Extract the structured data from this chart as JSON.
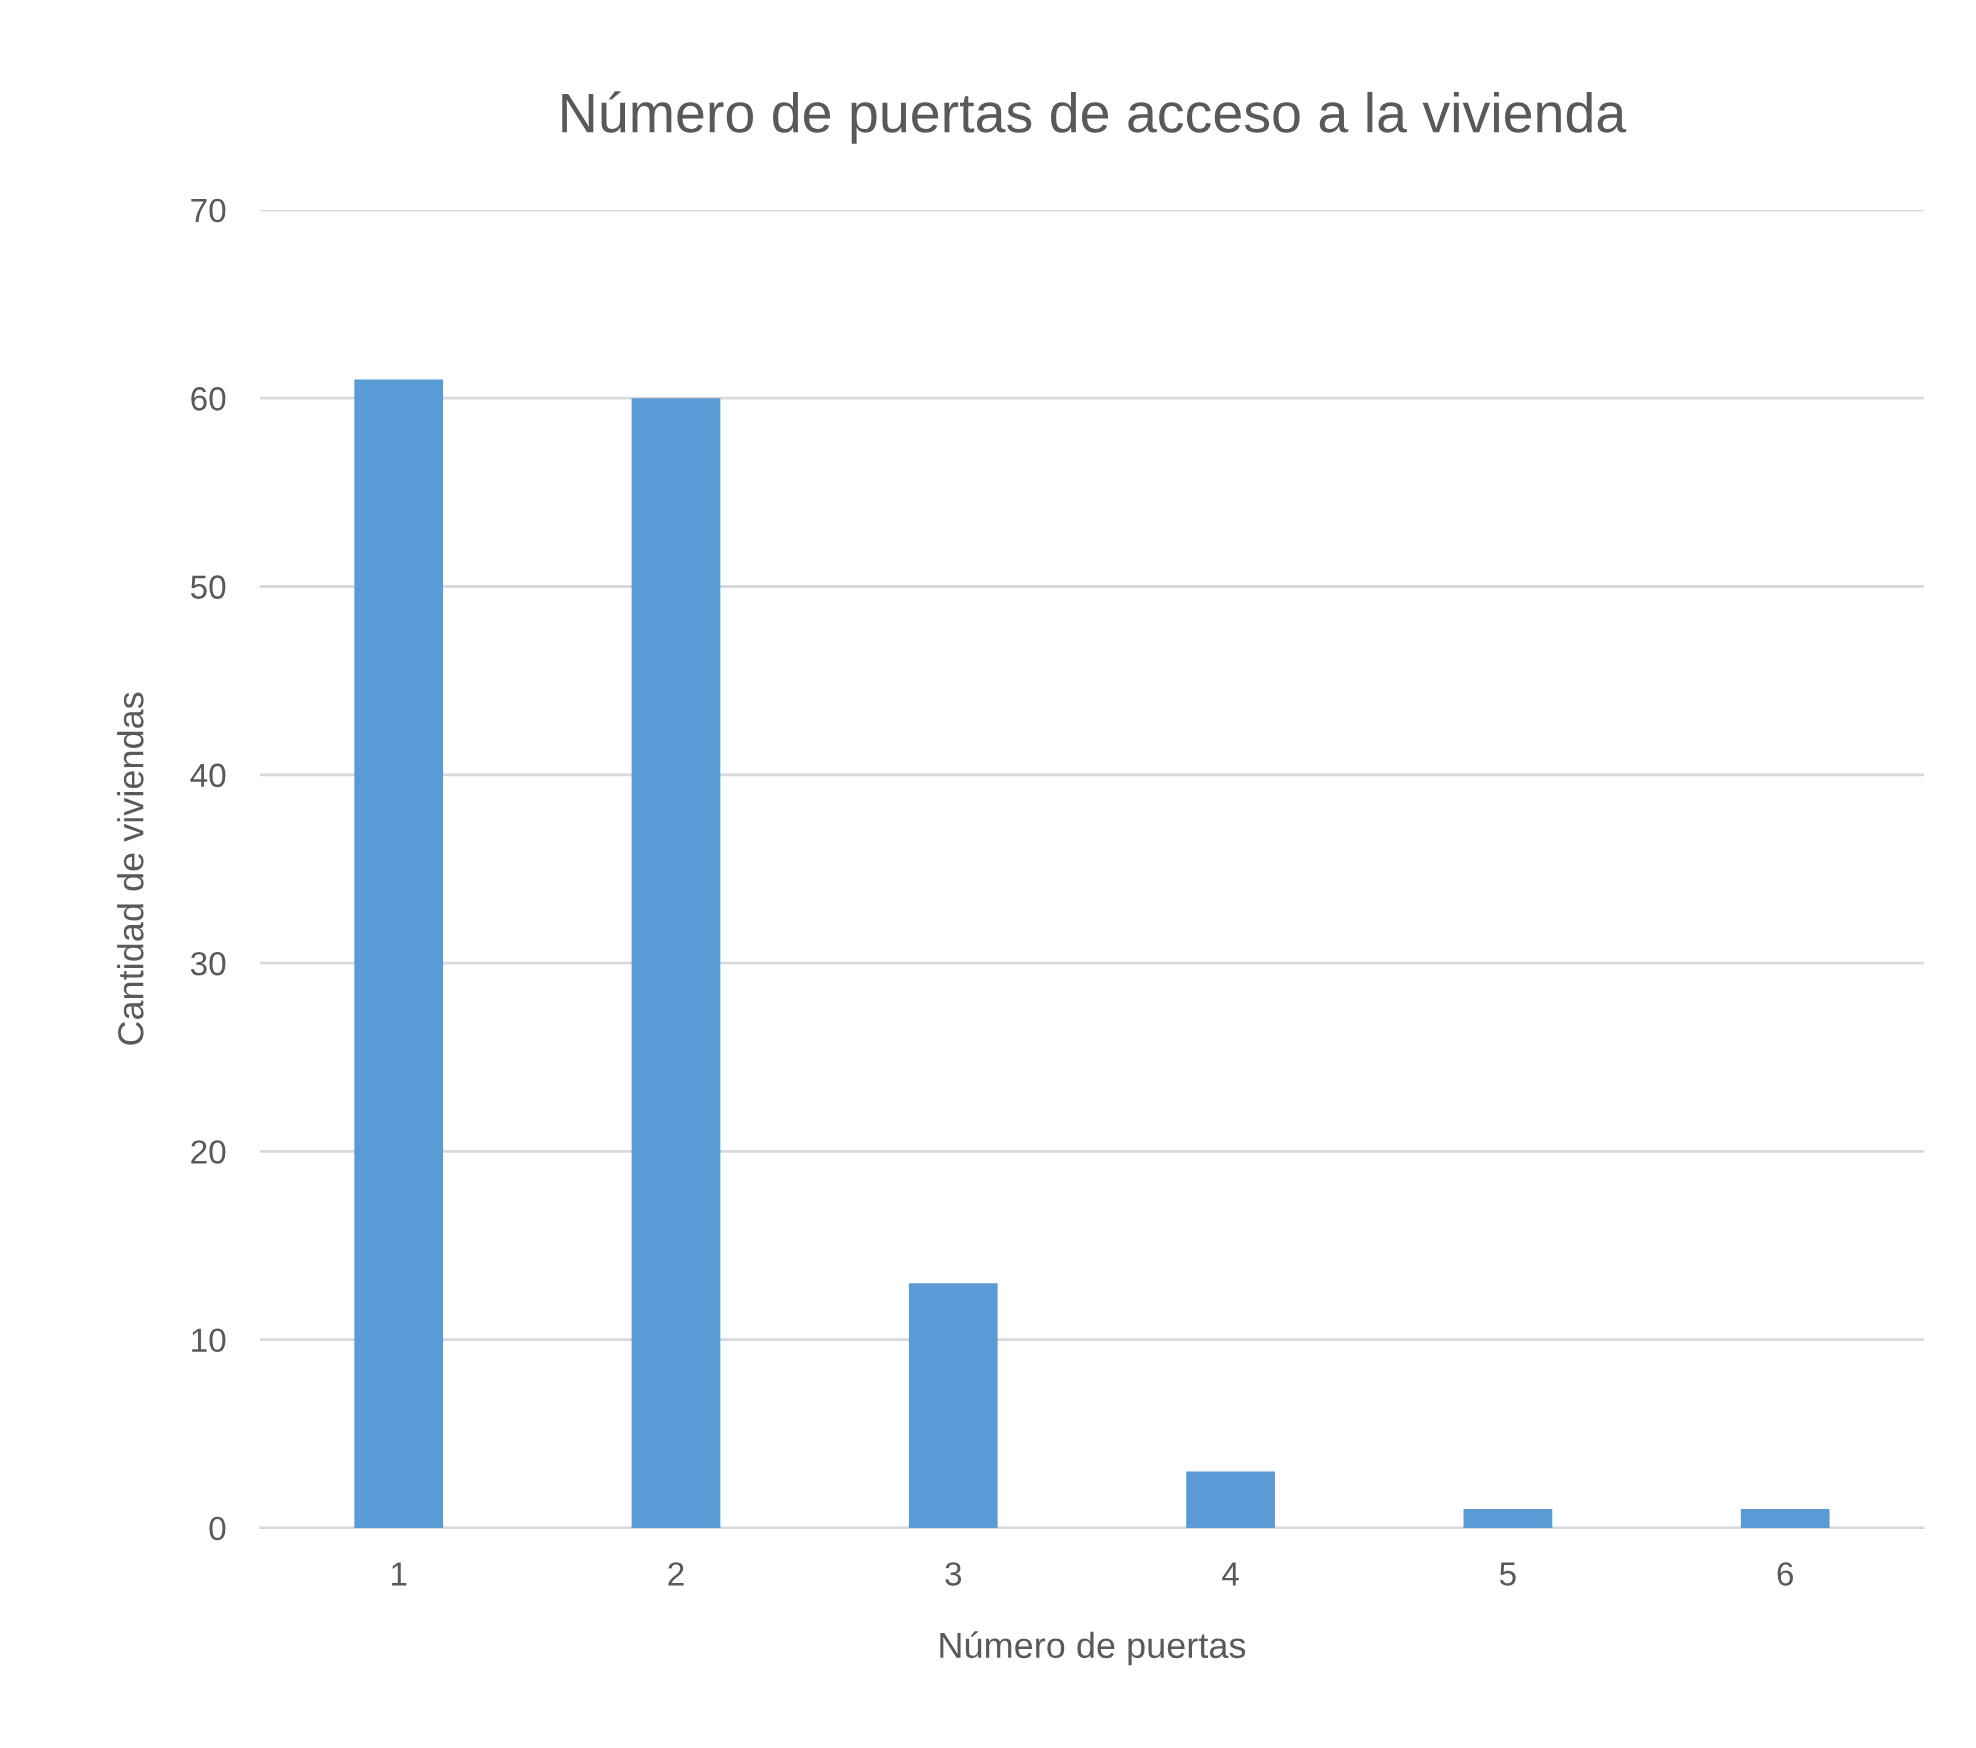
{
  "chart_data": {
    "type": "bar",
    "title": "Número de puertas de acceso a la vivienda",
    "xlabel": "Número de puertas",
    "ylabel": "Cantidad de viviendas",
    "categories": [
      "1",
      "2",
      "3",
      "4",
      "5",
      "6"
    ],
    "values": [
      61,
      60,
      13,
      3,
      1,
      1
    ],
    "color": "#5b9bd5",
    "ylim": [
      0,
      70
    ],
    "yticks": [
      0,
      10,
      20,
      30,
      40,
      50,
      60,
      70
    ],
    "grid": "y",
    "legend": false
  }
}
